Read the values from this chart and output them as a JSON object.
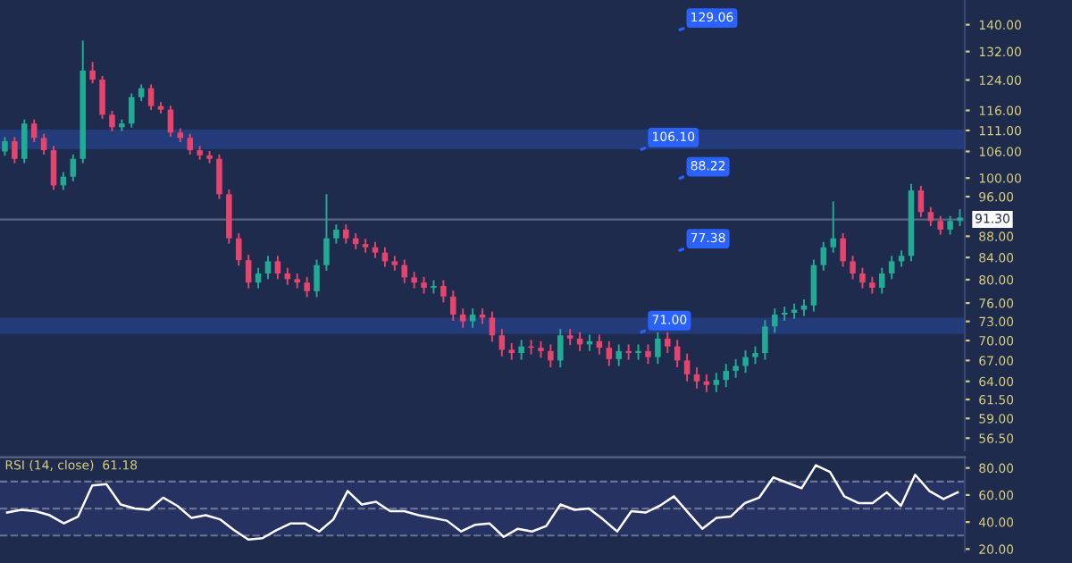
{
  "chart_data": [
    {
      "type": "candlestick",
      "categories": [
        null,
        null,
        null,
        null,
        null,
        null,
        null,
        null,
        null,
        null,
        null,
        null,
        null,
        null,
        null,
        null,
        null,
        null,
        null,
        null,
        null,
        null,
        null,
        null,
        null,
        null,
        null,
        null,
        null,
        null,
        null,
        null,
        null,
        null,
        null,
        null,
        null,
        null,
        null,
        null,
        null,
        null,
        null,
        null,
        null,
        null,
        null,
        null,
        null,
        null,
        null,
        null,
        null,
        null,
        null,
        null,
        null,
        null,
        null,
        null,
        null,
        null,
        null,
        null,
        null,
        null,
        null,
        null,
        null,
        null,
        null,
        null,
        null,
        null,
        null,
        null,
        null,
        null,
        null,
        null,
        null,
        null,
        null,
        null,
        null,
        null,
        null,
        null,
        null,
        null,
        null,
        null,
        null,
        null,
        null,
        null,
        null,
        null,
        null
      ],
      "ohlc": [
        [
          106.0,
          109.4,
          105.0,
          108.4
        ],
        [
          108.4,
          109.4,
          103.3,
          104.3
        ],
        [
          104.3,
          113.7,
          103.3,
          112.7
        ],
        [
          112.7,
          113.7,
          108.2,
          109.2
        ],
        [
          109.2,
          110.2,
          105.3,
          106.3
        ],
        [
          106.3,
          107.3,
          97.4,
          98.4
        ],
        [
          98.4,
          101.3,
          97.4,
          100.3
        ],
        [
          100.3,
          105.3,
          99.3,
          104.3
        ],
        [
          104.3,
          135.2,
          103.3,
          126.6
        ],
        [
          126.6,
          129.0,
          123.1,
          124.1
        ],
        [
          124.1,
          125.1,
          113.9,
          114.9
        ],
        [
          114.9,
          115.9,
          110.8,
          111.8
        ],
        [
          111.8,
          113.7,
          110.8,
          112.7
        ],
        [
          112.7,
          120.4,
          111.7,
          119.4
        ],
        [
          119.4,
          122.8,
          118.4,
          121.8
        ],
        [
          121.8,
          122.8,
          116.1,
          117.1
        ],
        [
          117.1,
          118.1,
          115.2,
          116.2
        ],
        [
          116.2,
          117.2,
          109.5,
          110.5
        ],
        [
          110.5,
          111.5,
          108.2,
          109.2
        ],
        [
          109.2,
          110.2,
          105.3,
          106.3
        ],
        [
          106.3,
          107.3,
          104.1,
          105.1
        ],
        [
          105.1,
          106.1,
          103.3,
          104.3
        ],
        [
          104.3,
          105.3,
          95.5,
          96.5
        ],
        [
          96.5,
          97.5,
          86.6,
          87.6
        ],
        [
          87.6,
          88.6,
          82.5,
          83.5
        ],
        [
          83.5,
          84.5,
          78.5,
          79.5
        ],
        [
          79.5,
          82.1,
          78.5,
          81.1
        ],
        [
          81.1,
          84.3,
          80.1,
          83.3
        ],
        [
          83.3,
          84.3,
          80.1,
          81.1
        ],
        [
          81.1,
          82.1,
          79.1,
          80.1
        ],
        [
          80.1,
          81.1,
          78.5,
          79.5
        ],
        [
          79.5,
          80.5,
          77.0,
          78.0
        ],
        [
          78.0,
          83.6,
          77.0,
          82.6
        ],
        [
          82.6,
          96.5,
          81.6,
          87.6
        ],
        [
          87.6,
          90.3,
          86.6,
          89.3
        ],
        [
          89.3,
          90.3,
          86.6,
          87.6
        ],
        [
          87.6,
          88.6,
          85.5,
          86.5
        ],
        [
          86.5,
          87.5,
          84.9,
          85.9
        ],
        [
          85.9,
          86.9,
          83.9,
          84.9
        ],
        [
          84.9,
          85.9,
          82.3,
          83.3
        ],
        [
          83.3,
          84.3,
          81.6,
          82.6
        ],
        [
          82.6,
          83.6,
          79.4,
          80.4
        ],
        [
          80.4,
          81.4,
          78.5,
          79.5
        ],
        [
          79.5,
          80.5,
          77.6,
          78.6
        ],
        [
          78.6,
          79.9,
          77.6,
          78.9
        ],
        [
          78.9,
          79.9,
          76.1,
          77.1
        ],
        [
          77.1,
          78.1,
          73.1,
          74.1
        ],
        [
          74.1,
          75.1,
          72.0,
          73.0
        ],
        [
          73.0,
          75.1,
          72.0,
          74.1
        ],
        [
          74.1,
          75.1,
          72.6,
          73.6
        ],
        [
          73.6,
          74.6,
          69.8,
          70.8
        ],
        [
          70.8,
          71.8,
          67.6,
          68.6
        ],
        [
          68.6,
          69.6,
          67.1,
          68.1
        ],
        [
          68.1,
          70.1,
          67.1,
          69.1
        ],
        [
          69.1,
          70.1,
          67.9,
          68.9
        ],
        [
          68.9,
          69.9,
          67.4,
          68.4
        ],
        [
          68.4,
          69.4,
          66.0,
          67.0
        ],
        [
          67.0,
          71.8,
          66.0,
          70.8
        ],
        [
          70.8,
          71.8,
          69.3,
          70.3
        ],
        [
          70.3,
          71.3,
          68.4,
          69.4
        ],
        [
          69.4,
          70.9,
          68.4,
          69.9
        ],
        [
          69.9,
          70.9,
          67.9,
          68.9
        ],
        [
          68.9,
          69.9,
          66.2,
          67.2
        ],
        [
          67.2,
          69.4,
          66.2,
          68.4
        ],
        [
          68.4,
          69.4,
          67.1,
          68.1
        ],
        [
          68.1,
          69.4,
          67.1,
          68.4
        ],
        [
          68.4,
          69.4,
          66.5,
          67.5
        ],
        [
          67.5,
          71.3,
          66.5,
          70.3
        ],
        [
          70.3,
          71.3,
          68.1,
          69.1
        ],
        [
          69.1,
          70.1,
          66.0,
          67.0
        ],
        [
          67.0,
          68.0,
          64.0,
          65.0
        ],
        [
          65.0,
          66.0,
          63.0,
          64.0
        ],
        [
          64.0,
          65.0,
          62.5,
          63.5
        ],
        [
          63.5,
          65.2,
          62.5,
          64.2
        ],
        [
          64.2,
          66.5,
          63.2,
          65.5
        ],
        [
          65.5,
          67.2,
          64.5,
          66.2
        ],
        [
          66.2,
          68.5,
          65.2,
          67.5
        ],
        [
          67.5,
          69.1,
          66.5,
          68.1
        ],
        [
          68.1,
          73.2,
          67.1,
          72.2
        ],
        [
          72.2,
          75.1,
          71.2,
          74.1
        ],
        [
          74.1,
          75.4,
          73.1,
          74.4
        ],
        [
          74.4,
          75.9,
          73.4,
          74.9
        ],
        [
          74.9,
          76.6,
          73.9,
          75.6
        ],
        [
          75.6,
          83.6,
          74.6,
          82.6
        ],
        [
          82.6,
          86.9,
          81.6,
          85.9
        ],
        [
          85.9,
          95.0,
          84.9,
          87.6
        ],
        [
          87.6,
          88.6,
          82.3,
          83.3
        ],
        [
          83.3,
          84.3,
          80.1,
          81.1
        ],
        [
          81.1,
          82.1,
          78.5,
          79.5
        ],
        [
          79.5,
          80.5,
          77.6,
          78.6
        ],
        [
          78.6,
          82.1,
          77.6,
          81.1
        ],
        [
          81.1,
          84.3,
          80.1,
          83.3
        ],
        [
          83.3,
          85.3,
          82.3,
          84.3
        ],
        [
          84.3,
          98.7,
          83.3,
          97.3
        ],
        [
          97.3,
          98.3,
          91.8,
          92.8
        ],
        [
          92.8,
          93.8,
          90.0,
          91.0
        ],
        [
          91.0,
          92.0,
          88.3,
          89.3
        ],
        [
          89.3,
          92.0,
          88.3,
          91.0
        ],
        [
          91.0,
          93.4,
          90.0,
          91.7
        ]
      ],
      "log": true,
      "ylim": [
        55.0,
        147.8
      ],
      "yticks": [
        {
          "value": 140,
          "label": "140.00"
        },
        {
          "value": 132,
          "label": "132.00"
        },
        {
          "value": 124,
          "label": "124.00"
        },
        {
          "value": 116,
          "label": "116.00"
        },
        {
          "value": 111,
          "label": "111.00"
        },
        {
          "value": 106,
          "label": "106.00"
        },
        {
          "value": 100,
          "label": "100.00"
        },
        {
          "value": 96,
          "label": "96.00"
        },
        {
          "value": 88,
          "label": "88.00"
        },
        {
          "value": 84,
          "label": "84.00"
        },
        {
          "value": 80,
          "label": "80.00"
        },
        {
          "value": 76,
          "label": "76.00"
        },
        {
          "value": 73,
          "label": "73.00"
        },
        {
          "value": 70,
          "label": "70.00"
        },
        {
          "value": 67,
          "label": "67.00"
        },
        {
          "value": 64,
          "label": "64.00"
        },
        {
          "value": 61.5,
          "label": "61.50"
        },
        {
          "value": 59,
          "label": "59.00"
        },
        {
          "value": 56.5,
          "label": "56.50"
        }
      ],
      "tick_labels": "y",
      "grid": false,
      "bands": [
        {
          "axis": "y",
          "from": 106.5,
          "to": 111.2,
          "color": "#27428a"
        },
        {
          "axis": "y",
          "from": 71.0,
          "to": 73.6,
          "color": "#27428a"
        }
      ],
      "ref_lines": [
        {
          "axis": "y",
          "value": 91.3,
          "label": "91.30",
          "color": "#5b6480"
        }
      ],
      "annotations": [
        "129.06",
        {
          "text": "106.10",
          "y": 106.1
        },
        "88.22",
        "77.38",
        {
          "text": "71.00",
          "y": 71.0
        }
      ]
    },
    {
      "type": "line",
      "categories": [
        null,
        null,
        null,
        null,
        null,
        null,
        null,
        null,
        null,
        null,
        null,
        null,
        null,
        null,
        null,
        null,
        null,
        null,
        null,
        null,
        null,
        null,
        null,
        null,
        null,
        null,
        null,
        null,
        null,
        null,
        null,
        null,
        null,
        null,
        null,
        null,
        null,
        null,
        null,
        null,
        null,
        null,
        null,
        null,
        null,
        null,
        null,
        null,
        null,
        null,
        null,
        null,
        null,
        null,
        null,
        null,
        null,
        null,
        null,
        null,
        null,
        null,
        null,
        null,
        null,
        null,
        null,
        null
      ],
      "series": [
        {
          "color": "#ffffff",
          "values": [
            47,
            49,
            48,
            45,
            39,
            44,
            67,
            68,
            53,
            50,
            49,
            58,
            52,
            43,
            45,
            42,
            34,
            27,
            28,
            34,
            39,
            39,
            33,
            42,
            63,
            53,
            55,
            48,
            48,
            45,
            43,
            41,
            33,
            38,
            39,
            29,
            35,
            33,
            37,
            53,
            49,
            50,
            42,
            33,
            48,
            47,
            52,
            59,
            47,
            35,
            43,
            44,
            54,
            58,
            73,
            69,
            65,
            82,
            77,
            59,
            54,
            54,
            62,
            52,
            75,
            63,
            57,
            62
          ]
        }
      ],
      "title": "RSI (14, close)  61.18",
      "ylim": [
        18,
        88
      ],
      "yticks": [
        {
          "value": 20,
          "label": "20.00"
        },
        {
          "value": 40,
          "label": "40.00"
        },
        {
          "value": 60,
          "label": "60.00"
        },
        {
          "value": 80,
          "label": "80.00"
        }
      ],
      "tick_labels": "y",
      "grid": false,
      "bands": [
        {
          "axis": "y",
          "from": 30,
          "to": 70,
          "color": "#29366a"
        }
      ],
      "ref_lines": [
        {
          "axis": "y",
          "value": 70,
          "line_style": "dashed",
          "color": "#6b7393"
        },
        {
          "axis": "y",
          "value": 50,
          "line_style": "dashed",
          "color": "#6b7393"
        },
        {
          "axis": "y",
          "value": 30,
          "line_style": "dashed",
          "color": "#6b7393"
        }
      ]
    }
  ]
}
